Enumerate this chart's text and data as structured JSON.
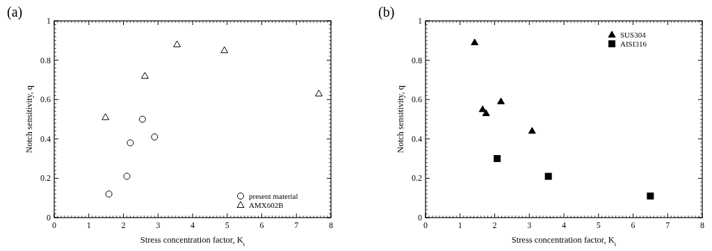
{
  "chart_data": [
    {
      "type": "scatter",
      "title": "(a)",
      "xlabel": "Stress concentration factor, K$_{t}$",
      "ylabel": "Notch sensitivity, q",
      "xlim": [
        0,
        8
      ],
      "xticks": [
        0,
        1,
        2,
        3,
        4,
        5,
        6,
        7,
        8
      ],
      "ylim": [
        0,
        1
      ],
      "yticks": [
        0,
        0.2,
        0.4,
        0.6,
        0.8,
        1
      ],
      "grid": false,
      "legend": "bottom right",
      "series": [
        {
          "name": "present material",
          "color": "#ffffff",
          "marker": "circle",
          "x": [
            1.58,
            2.1,
            2.2,
            2.55,
            2.9
          ],
          "values": [
            0.12,
            0.21,
            0.38,
            0.5,
            0.41
          ]
        },
        {
          "name": "AMX602B",
          "color": "#ffffff",
          "marker": "triangle",
          "x": [
            1.48,
            2.62,
            3.55,
            4.92,
            7.65
          ],
          "values": [
            0.51,
            0.72,
            0.88,
            0.85,
            0.63
          ]
        }
      ]
    },
    {
      "type": "scatter",
      "title": "(b)",
      "xlabel": "Stress concentration factor, K$_{t}$",
      "ylabel": "Notch sensitivity, q",
      "xlim": [
        0,
        8
      ],
      "xticks": [
        0,
        1,
        2,
        3,
        4,
        5,
        6,
        7,
        8
      ],
      "ylim": [
        0,
        1
      ],
      "yticks": [
        0,
        0.2,
        0.4,
        0.6,
        0.8,
        1
      ],
      "grid": false,
      "legend": "top right",
      "series": [
        {
          "name": "SUS304",
          "color": "#000000",
          "marker": "triangle",
          "x": [
            1.42,
            1.65,
            1.75,
            2.18,
            3.08
          ],
          "values": [
            0.89,
            0.55,
            0.53,
            0.59,
            0.44
          ]
        },
        {
          "name": "AISI316",
          "color": "#000000",
          "marker": "square",
          "x": [
            2.07,
            3.55,
            6.5
          ],
          "values": [
            0.3,
            0.21,
            0.11
          ]
        }
      ]
    }
  ]
}
